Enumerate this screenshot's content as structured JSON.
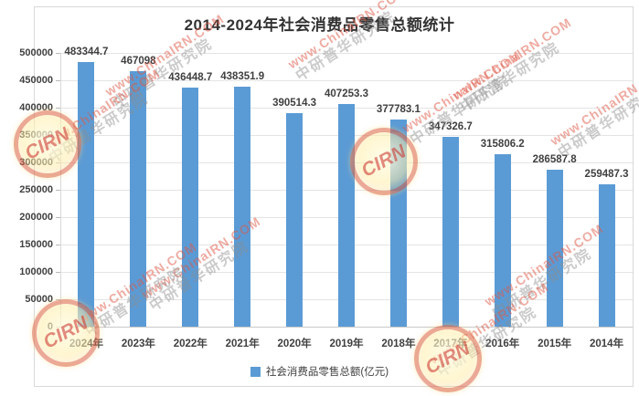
{
  "title": "2014-2024年社会消费品零售总额统计",
  "chart_data": {
    "type": "bar",
    "title": "2014-2024年社会消费品零售总额统计",
    "categories": [
      "2024年",
      "2023年",
      "2022年",
      "2021年",
      "2020年",
      "2019年",
      "2018年",
      "2017年",
      "2016年",
      "2015年",
      "2014年"
    ],
    "values": [
      483344.7,
      467098,
      436448.7,
      438351.9,
      390514.3,
      407253.3,
      377783.1,
      347326.7,
      315806.2,
      286587.8,
      259487.3
    ],
    "value_labels": [
      "483344.7",
      "467098",
      "436448.7",
      "438351.9",
      "390514.3",
      "407253.3",
      "377783.1",
      "347326.7",
      "315806.2",
      "286587.8",
      "259487.3"
    ],
    "xlabel": "",
    "ylabel": "",
    "ylim": [
      0,
      500000
    ],
    "ytick_step": 50000,
    "yticks": [
      0,
      50000,
      100000,
      150000,
      200000,
      250000,
      300000,
      350000,
      400000,
      450000,
      500000
    ],
    "ytick_labels": [
      "0",
      "50000",
      "100000",
      "150000",
      "200000",
      "250000",
      "300000",
      "350000",
      "400000",
      "450000",
      "500000"
    ],
    "grid": true,
    "legend_position": "bottom",
    "legend_label": "社会消费品零售总额(亿元)",
    "bar_color": "#5B9BD5"
  },
  "watermark": {
    "url_text": "www.ChinaIRN.COM",
    "org_text": "中研普华研究院",
    "logo_text": "CIRN",
    "url_color": "#DD5846",
    "org_color": "#8C8C8C"
  },
  "colors": {
    "bar": "#5B9BD5",
    "text": "#404040",
    "gridline": "#E4E4E4",
    "frame_border": "#D9D9D9",
    "background": "#FFFFFF"
  }
}
